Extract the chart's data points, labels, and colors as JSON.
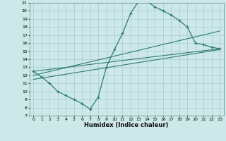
{
  "xlabel": "Humidex (Indice chaleur)",
  "bg_color": "#cce8e8",
  "line_color": "#2e7d6e",
  "grid_color": "#aacccc",
  "xlim": [
    -0.5,
    23.5
  ],
  "ylim": [
    7,
    21
  ],
  "xticks": [
    0,
    1,
    2,
    3,
    4,
    5,
    6,
    7,
    8,
    9,
    10,
    11,
    12,
    13,
    14,
    15,
    16,
    17,
    18,
    19,
    20,
    21,
    22,
    23
  ],
  "yticks": [
    7,
    8,
    9,
    10,
    11,
    12,
    13,
    14,
    15,
    16,
    17,
    18,
    19,
    20,
    21
  ],
  "curve_x": [
    0,
    1,
    2,
    3,
    4,
    5,
    6,
    7,
    8,
    9,
    10,
    11,
    12,
    13,
    14,
    15,
    16,
    17,
    18,
    19,
    20,
    21,
    22,
    23
  ],
  "curve_y": [
    12.5,
    11.8,
    11.0,
    10.0,
    9.5,
    9.0,
    8.5,
    7.8,
    9.3,
    13.0,
    15.2,
    17.2,
    19.7,
    21.2,
    21.2,
    20.5,
    20.0,
    19.5,
    18.8,
    18.0,
    16.0,
    15.8,
    15.5,
    15.3
  ],
  "line1_x": [
    0,
    23
  ],
  "line1_y": [
    12.5,
    15.3
  ],
  "line2_x": [
    0,
    23
  ],
  "line2_y": [
    12.0,
    17.5
  ],
  "line3_x": [
    0,
    23
  ],
  "line3_y": [
    11.5,
    15.2
  ]
}
